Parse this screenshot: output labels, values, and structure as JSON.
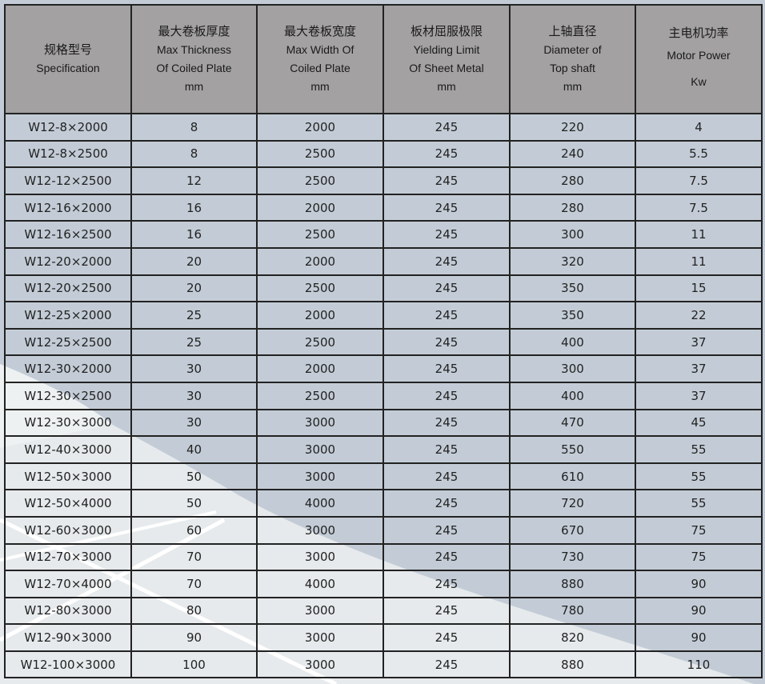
{
  "colors": {
    "header_bg": "#a3a1a2",
    "bg_light": "#e6eaec",
    "bg_blue": "#c3ccd6",
    "border": "#222222"
  },
  "table": {
    "headers": [
      {
        "lines": [
          "规格型号",
          "Specification"
        ]
      },
      {
        "lines": [
          "最大卷板厚度",
          "Max Thickness",
          "Of Coiled Plate",
          "mm"
        ]
      },
      {
        "lines": [
          "最大卷板宽度",
          "Max Width  Of",
          "Coiled Plate",
          "mm"
        ]
      },
      {
        "lines": [
          "板材屈服极限",
          "Yielding Limit",
          "Of  Sheet Metal",
          "mm"
        ]
      },
      {
        "lines": [
          "上轴直径",
          "Diameter of",
          "Top shaft",
          "mm"
        ]
      },
      {
        "lines": [
          "主电机功率",
          "Motor Power",
          "Kw"
        ]
      }
    ],
    "rows": [
      [
        "W12-8×2000",
        "8",
        "2000",
        "245",
        "220",
        "4"
      ],
      [
        "W12-8×2500",
        "8",
        "2500",
        "245",
        "240",
        "5.5"
      ],
      [
        "W12-12×2500",
        "12",
        "2500",
        "245",
        "280",
        "7.5"
      ],
      [
        "W12-16×2000",
        "16",
        "2000",
        "245",
        "280",
        "7.5"
      ],
      [
        "W12-16×2500",
        "16",
        "2500",
        "245",
        "300",
        "11"
      ],
      [
        "W12-20×2000",
        "20",
        "2000",
        "245",
        "320",
        "11"
      ],
      [
        "W12-20×2500",
        "20",
        "2500",
        "245",
        "350",
        "15"
      ],
      [
        "W12-25×2000",
        "25",
        "2000",
        "245",
        "350",
        "22"
      ],
      [
        "W12-25×2500",
        "25",
        "2500",
        "245",
        "400",
        "37"
      ],
      [
        "W12-30×2000",
        "30",
        "2000",
        "245",
        "300",
        "37"
      ],
      [
        "W12-30×2500",
        "30",
        "2500",
        "245",
        "400",
        "37"
      ],
      [
        "W12-30×3000",
        "30",
        "3000",
        "245",
        "470",
        "45"
      ],
      [
        "W12-40×3000",
        "40",
        "3000",
        "245",
        "550",
        "55"
      ],
      [
        "W12-50×3000",
        "50",
        "3000",
        "245",
        "610",
        "55"
      ],
      [
        "W12-50×4000",
        "50",
        "4000",
        "245",
        "720",
        "55"
      ],
      [
        "W12-60×3000",
        "60",
        "3000",
        "245",
        "670",
        "75"
      ],
      [
        "W12-70×3000",
        "70",
        "3000",
        "245",
        "730",
        "75"
      ],
      [
        "W12-70×4000",
        "70",
        "4000",
        "245",
        "880",
        "90"
      ],
      [
        "W12-80×3000",
        "80",
        "3000",
        "245",
        "780",
        "90"
      ],
      [
        "W12-90×3000",
        "90",
        "3000",
        "245",
        "820",
        "90"
      ],
      [
        "W12-100×3000",
        "100",
        "3000",
        "245",
        "880",
        "110"
      ]
    ]
  }
}
